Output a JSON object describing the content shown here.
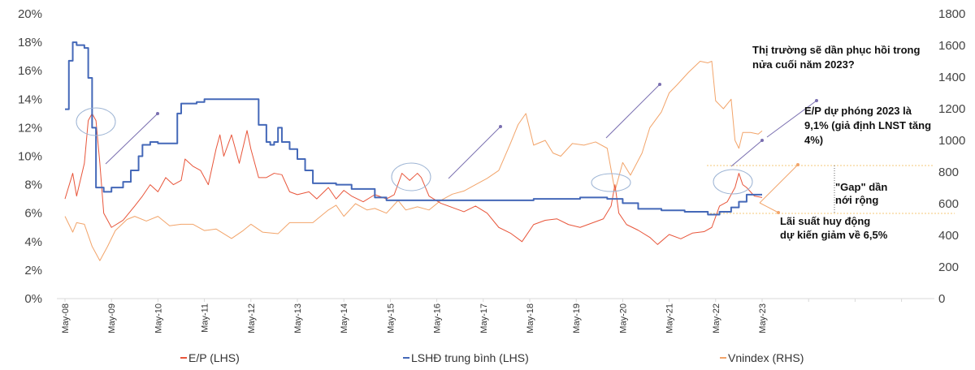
{
  "chart_data": {
    "type": "line",
    "title": "",
    "left_axis": {
      "ticks": [
        "0%",
        "2%",
        "4%",
        "6%",
        "8%",
        "10%",
        "12%",
        "14%",
        "16%",
        "18%",
        "20%"
      ],
      "ylim": [
        0,
        20
      ],
      "unit": "%"
    },
    "right_axis": {
      "ticks": [
        "0",
        "200",
        "400",
        "600",
        "800",
        "1000",
        "1200",
        "1400",
        "1600",
        "1800"
      ],
      "ylim": [
        0,
        1800
      ]
    },
    "x_ticks": [
      "May-08",
      "May-09",
      "May-10",
      "May-11",
      "May-12",
      "May-13",
      "May-14",
      "May-15",
      "May-16",
      "May-17",
      "May-18",
      "May-19",
      "May-20",
      "May-21",
      "May-22",
      "May-23"
    ],
    "grid": false,
    "legend_position": "bottom",
    "series": [
      {
        "name": "E/P (LHS)",
        "axis": "left",
        "color": "#e8553a",
        "step": false,
        "points": [
          [
            "2008-05",
            7.0
          ],
          [
            "2008-07",
            8.8
          ],
          [
            "2008-08",
            7.2
          ],
          [
            "2008-10",
            9.5
          ],
          [
            "2008-11",
            12.5
          ],
          [
            "2008-12",
            13.0
          ],
          [
            "2009-01",
            12.5
          ],
          [
            "2009-02",
            9.5
          ],
          [
            "2009-03",
            6.0
          ],
          [
            "2009-05",
            5.0
          ],
          [
            "2009-08",
            5.5
          ],
          [
            "2009-11",
            6.5
          ],
          [
            "2010-01",
            7.2
          ],
          [
            "2010-03",
            8.0
          ],
          [
            "2010-05",
            7.5
          ],
          [
            "2010-07",
            8.5
          ],
          [
            "2010-09",
            8.0
          ],
          [
            "2010-11",
            8.3
          ],
          [
            "2010-12",
            9.8
          ],
          [
            "2011-02",
            9.3
          ],
          [
            "2011-04",
            9.0
          ],
          [
            "2011-06",
            8.0
          ],
          [
            "2011-08",
            10.5
          ],
          [
            "2011-09",
            11.5
          ],
          [
            "2011-10",
            10.0
          ],
          [
            "2011-12",
            11.5
          ],
          [
            "2012-02",
            9.5
          ],
          [
            "2012-04",
            11.8
          ],
          [
            "2012-05",
            10.5
          ],
          [
            "2012-07",
            8.5
          ],
          [
            "2012-09",
            8.5
          ],
          [
            "2012-11",
            8.8
          ],
          [
            "2013-01",
            8.7
          ],
          [
            "2013-03",
            7.5
          ],
          [
            "2013-05",
            7.3
          ],
          [
            "2013-08",
            7.5
          ],
          [
            "2013-10",
            7.0
          ],
          [
            "2014-01",
            7.8
          ],
          [
            "2014-03",
            7.0
          ],
          [
            "2014-05",
            7.6
          ],
          [
            "2014-07",
            7.2
          ],
          [
            "2014-10",
            6.8
          ],
          [
            "2015-01",
            7.3
          ],
          [
            "2015-04",
            7.0
          ],
          [
            "2015-06",
            7.3
          ],
          [
            "2015-08",
            8.8
          ],
          [
            "2015-10",
            8.3
          ],
          [
            "2015-12",
            8.8
          ],
          [
            "2016-01",
            8.5
          ],
          [
            "2016-03",
            7.2
          ],
          [
            "2016-06",
            6.7
          ],
          [
            "2016-09",
            6.4
          ],
          [
            "2016-12",
            6.1
          ],
          [
            "2017-03",
            6.5
          ],
          [
            "2017-06",
            6.0
          ],
          [
            "2017-09",
            5.0
          ],
          [
            "2017-12",
            4.6
          ],
          [
            "2018-03",
            4.0
          ],
          [
            "2018-06",
            5.2
          ],
          [
            "2018-09",
            5.5
          ],
          [
            "2018-12",
            5.6
          ],
          [
            "2019-03",
            5.2
          ],
          [
            "2019-06",
            5.0
          ],
          [
            "2019-09",
            5.3
          ],
          [
            "2019-12",
            5.6
          ],
          [
            "2020-02",
            6.5
          ],
          [
            "2020-03",
            8.0
          ],
          [
            "2020-04",
            6.0
          ],
          [
            "2020-06",
            5.2
          ],
          [
            "2020-09",
            4.8
          ],
          [
            "2020-12",
            4.3
          ],
          [
            "2021-02",
            3.8
          ],
          [
            "2021-05",
            4.5
          ],
          [
            "2021-08",
            4.2
          ],
          [
            "2021-11",
            4.6
          ],
          [
            "2022-02",
            4.7
          ],
          [
            "2022-04",
            5.0
          ],
          [
            "2022-06",
            6.5
          ],
          [
            "2022-08",
            6.8
          ],
          [
            "2022-10",
            7.8
          ],
          [
            "2022-11",
            8.8
          ],
          [
            "2022-12",
            8.0
          ],
          [
            "2023-01",
            7.8
          ],
          [
            "2023-03",
            7.2
          ],
          [
            "2023-05",
            7.1
          ]
        ]
      },
      {
        "name": "LSHĐ trung bình (LHS)",
        "axis": "left",
        "color": "#4468b8",
        "step": true,
        "points": [
          [
            "2008-05",
            13.3
          ],
          [
            "2008-06",
            16.7
          ],
          [
            "2008-07",
            18.0
          ],
          [
            "2008-08",
            17.8
          ],
          [
            "2008-10",
            17.6
          ],
          [
            "2008-11",
            15.5
          ],
          [
            "2008-12",
            12.0
          ],
          [
            "2009-01",
            7.8
          ],
          [
            "2009-03",
            7.5
          ],
          [
            "2009-05",
            7.8
          ],
          [
            "2009-08",
            8.2
          ],
          [
            "2009-10",
            9.0
          ],
          [
            "2009-12",
            10.0
          ],
          [
            "2010-01",
            10.8
          ],
          [
            "2010-03",
            11.0
          ],
          [
            "2010-05",
            10.9
          ],
          [
            "2010-09",
            10.9
          ],
          [
            "2010-10",
            13.0
          ],
          [
            "2010-11",
            13.7
          ],
          [
            "2011-03",
            13.8
          ],
          [
            "2011-05",
            14.0
          ],
          [
            "2012-06",
            14.0
          ],
          [
            "2012-07",
            12.2
          ],
          [
            "2012-09",
            11.0
          ],
          [
            "2012-10",
            10.8
          ],
          [
            "2012-11",
            11.0
          ],
          [
            "2012-12",
            12.0
          ],
          [
            "2013-01",
            11.0
          ],
          [
            "2013-03",
            10.5
          ],
          [
            "2013-05",
            9.8
          ],
          [
            "2013-07",
            9.0
          ],
          [
            "2013-09",
            8.1
          ],
          [
            "2014-03",
            8.0
          ],
          [
            "2014-07",
            7.7
          ],
          [
            "2015-01",
            7.1
          ],
          [
            "2015-04",
            6.9
          ],
          [
            "2016-06",
            6.9
          ],
          [
            "2017-03",
            6.9
          ],
          [
            "2018-06",
            7.0
          ],
          [
            "2019-06",
            7.1
          ],
          [
            "2020-01",
            7.0
          ],
          [
            "2020-05",
            6.7
          ],
          [
            "2020-09",
            6.3
          ],
          [
            "2021-03",
            6.2
          ],
          [
            "2021-09",
            6.1
          ],
          [
            "2022-03",
            5.9
          ],
          [
            "2022-06",
            6.1
          ],
          [
            "2022-09",
            6.4
          ],
          [
            "2022-11",
            6.8
          ],
          [
            "2023-01",
            7.3
          ],
          [
            "2023-05",
            7.3
          ]
        ]
      },
      {
        "name": "Vnindex (RHS)",
        "axis": "right",
        "color": "#f2a46a",
        "step": false,
        "points": [
          [
            "2008-05",
            520
          ],
          [
            "2008-07",
            420
          ],
          [
            "2008-08",
            480
          ],
          [
            "2008-10",
            470
          ],
          [
            "2008-12",
            330
          ],
          [
            "2009-02",
            240
          ],
          [
            "2009-04",
            330
          ],
          [
            "2009-06",
            430
          ],
          [
            "2009-09",
            500
          ],
          [
            "2009-11",
            520
          ],
          [
            "2010-02",
            490
          ],
          [
            "2010-05",
            520
          ],
          [
            "2010-08",
            460
          ],
          [
            "2010-11",
            470
          ],
          [
            "2011-02",
            470
          ],
          [
            "2011-05",
            430
          ],
          [
            "2011-08",
            440
          ],
          [
            "2011-12",
            380
          ],
          [
            "2012-03",
            430
          ],
          [
            "2012-05",
            470
          ],
          [
            "2012-08",
            420
          ],
          [
            "2012-12",
            410
          ],
          [
            "2013-03",
            480
          ],
          [
            "2013-06",
            480
          ],
          [
            "2013-09",
            480
          ],
          [
            "2014-01",
            560
          ],
          [
            "2014-03",
            590
          ],
          [
            "2014-05",
            520
          ],
          [
            "2014-08",
            600
          ],
          [
            "2014-11",
            560
          ],
          [
            "2015-01",
            570
          ],
          [
            "2015-04",
            540
          ],
          [
            "2015-07",
            620
          ],
          [
            "2015-09",
            560
          ],
          [
            "2015-12",
            580
          ],
          [
            "2016-03",
            560
          ],
          [
            "2016-06",
            620
          ],
          [
            "2016-09",
            660
          ],
          [
            "2016-12",
            680
          ],
          [
            "2017-03",
            720
          ],
          [
            "2017-06",
            760
          ],
          [
            "2017-09",
            810
          ],
          [
            "2017-12",
            980
          ],
          [
            "2018-02",
            1100
          ],
          [
            "2018-04",
            1170
          ],
          [
            "2018-06",
            970
          ],
          [
            "2018-09",
            1000
          ],
          [
            "2018-11",
            920
          ],
          [
            "2019-01",
            900
          ],
          [
            "2019-04",
            980
          ],
          [
            "2019-07",
            970
          ],
          [
            "2019-10",
            990
          ],
          [
            "2020-01",
            950
          ],
          [
            "2020-03",
            680
          ],
          [
            "2020-05",
            860
          ],
          [
            "2020-07",
            780
          ],
          [
            "2020-10",
            920
          ],
          [
            "2020-12",
            1080
          ],
          [
            "2021-03",
            1180
          ],
          [
            "2021-05",
            1300
          ],
          [
            "2021-07",
            1350
          ],
          [
            "2021-10",
            1430
          ],
          [
            "2022-01",
            1500
          ],
          [
            "2022-03",
            1490
          ],
          [
            "2022-04",
            1500
          ],
          [
            "2022-05",
            1250
          ],
          [
            "2022-07",
            1200
          ],
          [
            "2022-09",
            1260
          ],
          [
            "2022-10",
            1000
          ],
          [
            "2022-11",
            950
          ],
          [
            "2022-12",
            1050
          ],
          [
            "2023-02",
            1050
          ],
          [
            "2023-04",
            1040
          ],
          [
            "2023-05",
            1060
          ]
        ]
      }
    ],
    "annotations": {
      "outlook_line1": "Thị trường sẽ dần phục hồi trong",
      "outlook_line2": "nửa cuối năm 2023?",
      "ep_line1": "E/P dự phóng 2023 là",
      "ep_line2": "9,1% (giả định LNST tăng",
      "ep_line3": "4%)",
      "gap_line1": "\"Gap\" dần",
      "gap_line2": "nới rộng",
      "rate_line1": "Lãi suất huy động",
      "rate_line2": "dự kiến giảm về 6,5%"
    }
  }
}
